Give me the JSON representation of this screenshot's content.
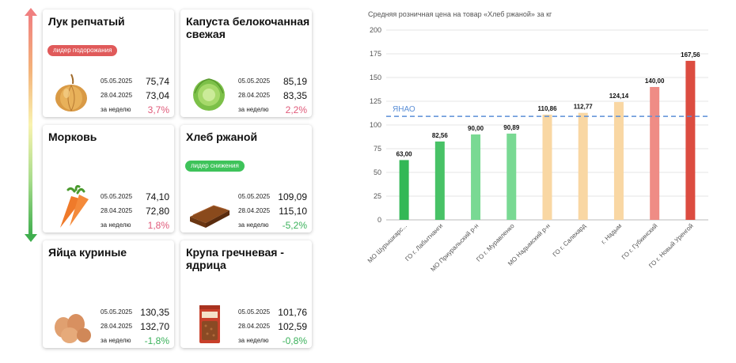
{
  "cards": [
    {
      "title": "Лук репчатый",
      "badge": "лидер подорожания",
      "date1": "05.05.2025",
      "price1": "75,74",
      "date2": "28.04.2025",
      "price2": "73,04",
      "week_label": "за неделю",
      "change": "3,7%",
      "icon": "onion-icon"
    },
    {
      "title": "Капуста белокочанная свежая",
      "badge": "",
      "date1": "05.05.2025",
      "price1": "85,19",
      "date2": "28.04.2025",
      "price2": "83,35",
      "week_label": "за неделю",
      "change": "2,2%",
      "icon": "cabbage-icon"
    },
    {
      "title": "Морковь",
      "badge": "",
      "date1": "05.05.2025",
      "price1": "74,10",
      "date2": "28.04.2025",
      "price2": "72,80",
      "week_label": "за неделю",
      "change": "1,8%",
      "icon": "carrot-icon"
    },
    {
      "title": "Хлеб ржаной",
      "badge": "лидер снижения",
      "date1": "05.05.2025",
      "price1": "109,09",
      "date2": "28.04.2025",
      "price2": "115,10",
      "week_label": "за неделю",
      "change": "-5,2%",
      "icon": "rye-bread-icon"
    },
    {
      "title": "Яйца куриные",
      "badge": "",
      "date1": "05.05.2025",
      "price1": "130,35",
      "date2": "28.04.2025",
      "price2": "132,70",
      "week_label": "за неделю",
      "change": "-1,8%",
      "icon": "eggs-icon"
    },
    {
      "title": "Крупа гречневая - ядрица",
      "badge": "",
      "date1": "05.05.2025",
      "price1": "101,76",
      "date2": "28.04.2025",
      "price2": "102,59",
      "week_label": "за неделю",
      "change": "-0,8%",
      "icon": "buckwheat-pack-icon"
    }
  ],
  "colors": {
    "up": "#e05a5a",
    "down": "#3ec35a",
    "reference": "#5b8fd6"
  },
  "chart_data": {
    "type": "bar",
    "title": "Средняя розничная цена на товар «Хлеб ржаной» за кг",
    "categories": [
      "МО Шурышкарс...",
      "ГО г. Лабытнанги",
      "МО Приуральский р-н",
      "ГО г. Муравленко",
      "МО Надымский р-н",
      "ГО г. Салехард",
      "г. Надым",
      "ГО г. Губкинский",
      "ГО г. Новый Уренгой"
    ],
    "values": [
      63.0,
      82.56,
      90.0,
      90.89,
      110.86,
      112.77,
      124.14,
      140.0,
      167.56
    ],
    "value_labels": [
      "63,00",
      "82,56",
      "90,00",
      "90,89",
      "110,86",
      "112,77",
      "124,14",
      "140,00",
      "167,56"
    ],
    "colors": [
      "#32b856",
      "#48c266",
      "#79d993",
      "#79d993",
      "#f9d7a3",
      "#f9d7a3",
      "#f9d7a3",
      "#ef8c85",
      "#dc4c40"
    ],
    "reference_line": {
      "label": "ЯНАО",
      "value": 109.09
    },
    "y_ticks": [
      0,
      25,
      50,
      75,
      100,
      125,
      150,
      175,
      200
    ],
    "ylim": [
      0,
      200
    ],
    "grid": true
  }
}
